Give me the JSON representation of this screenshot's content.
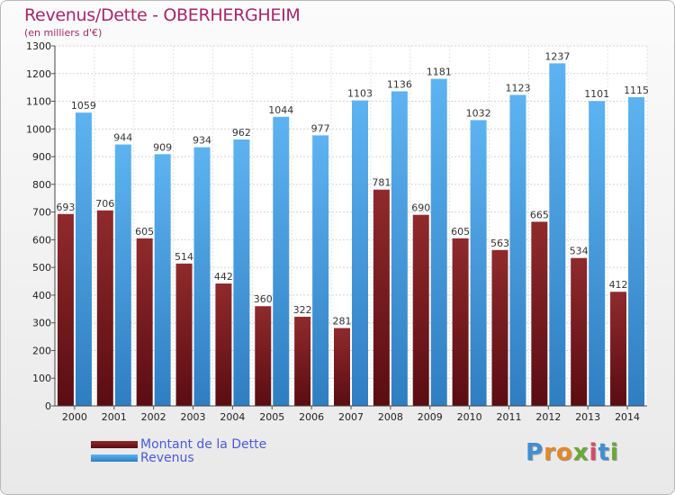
{
  "chart_data": {
    "type": "bar",
    "title": "Revenus/Dette - OBERHERGHEIM",
    "subtitle": "(en milliers d'€)",
    "categories": [
      "2000",
      "2001",
      "2002",
      "2003",
      "2004",
      "2005",
      "2006",
      "2007",
      "2008",
      "2009",
      "2010",
      "2011",
      "2012",
      "2013",
      "2014"
    ],
    "series": [
      {
        "name": "Montant de la Dette",
        "color": "#7a1a1e",
        "values": [
          693,
          706,
          605,
          514,
          442,
          360,
          322,
          281,
          781,
          690,
          605,
          563,
          665,
          534,
          412
        ]
      },
      {
        "name": "Revenus",
        "color": "#4da6e8",
        "values": [
          1059,
          944,
          909,
          934,
          962,
          1044,
          977,
          1103,
          1136,
          1181,
          1032,
          1123,
          1237,
          1101,
          1115
        ]
      }
    ],
    "ylim": [
      0,
      1300
    ],
    "yticks": [
      0,
      100,
      200,
      300,
      400,
      500,
      600,
      700,
      800,
      900,
      1000,
      1100,
      1200,
      1300
    ],
    "grid": true,
    "legend_position": "bottom-left"
  },
  "logo": {
    "letters": [
      "P",
      "r",
      "o",
      "x",
      "i",
      "t",
      "i"
    ],
    "colors": [
      "#3f8fd6",
      "#e2882a",
      "#e2882a",
      "#6aa932",
      "#d94a6a",
      "#3f8fd6",
      "#6aa932"
    ]
  }
}
